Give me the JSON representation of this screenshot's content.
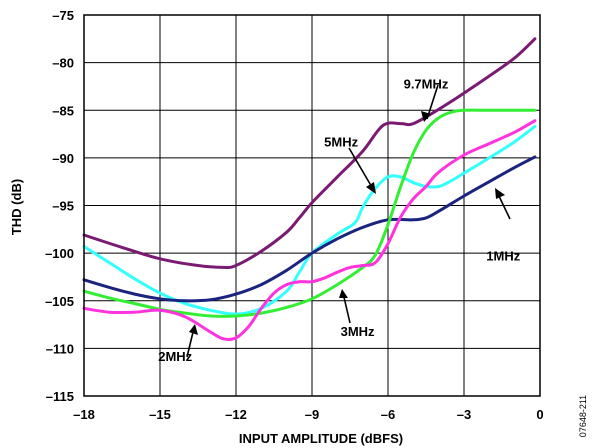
{
  "chart_data": {
    "type": "line",
    "xlabel": "INPUT AMPLITUDE (dBFS)",
    "ylabel": "THD (dB)",
    "xlim": [
      -18,
      0
    ],
    "ylim": [
      -115,
      -75
    ],
    "xticks": [
      "–18",
      "–15",
      "–12",
      "–9",
      "–6",
      "–3",
      "0"
    ],
    "yticks": [
      "–75",
      "–80",
      "–85",
      "–90",
      "–95",
      "–100",
      "–105",
      "–110",
      "–115"
    ],
    "grid": true,
    "side_note": "07648-211",
    "series": [
      {
        "name": "9.7MHz",
        "color": "#7b1a73",
        "x": [
          -18,
          -16.5,
          -15,
          -13.5,
          -12.5,
          -12,
          -11,
          -10,
          -9.5,
          -9,
          -8,
          -7,
          -6.2,
          -5.5,
          -5,
          -4,
          -3,
          -2,
          -1,
          -0.2
        ],
        "y": [
          -98.1,
          -99.4,
          -100.6,
          -101.3,
          -101.5,
          -101.3,
          -99.8,
          -97.8,
          -96.3,
          -94.7,
          -92.0,
          -89.3,
          -86.6,
          -86.4,
          -86.4,
          -84.9,
          -83.2,
          -81.4,
          -79.5,
          -77.5
        ]
      },
      {
        "name": "5MHz",
        "color": "#33ffff",
        "x": [
          -18,
          -17,
          -16,
          -15,
          -14,
          -13,
          -12,
          -11,
          -10,
          -9.5,
          -9,
          -8,
          -7.3,
          -7,
          -6.5,
          -6,
          -5.5,
          -5,
          -4.5,
          -4,
          -3.5,
          -3,
          -2,
          -1,
          -0.2
        ],
        "y": [
          -99.3,
          -101.0,
          -102.7,
          -104.2,
          -105.3,
          -106.0,
          -106.4,
          -105.8,
          -104.0,
          -102.0,
          -100.0,
          -98.0,
          -96.8,
          -95.2,
          -93.2,
          -92.0,
          -92.0,
          -92.6,
          -93.0,
          -93.0,
          -92.4,
          -91.6,
          -90.0,
          -88.3,
          -86.7
        ]
      },
      {
        "name": "1MHz",
        "color": "#1a237e",
        "x": [
          -18,
          -17,
          -16,
          -15,
          -14,
          -13,
          -12,
          -11,
          -10,
          -9,
          -8,
          -7,
          -6,
          -5,
          -4.5,
          -4,
          -3,
          -2,
          -1,
          -0.2
        ],
        "y": [
          -102.8,
          -103.6,
          -104.3,
          -104.8,
          -105.0,
          -104.9,
          -104.3,
          -103.3,
          -101.8,
          -100.0,
          -98.5,
          -97.3,
          -96.5,
          -96.5,
          -96.3,
          -95.6,
          -94.0,
          -92.5,
          -91.0,
          -89.9
        ]
      },
      {
        "name": "3MHz",
        "color": "#33ee33",
        "x": [
          -18,
          -17,
          -16,
          -15,
          -14,
          -13,
          -12,
          -11,
          -10,
          -9,
          -8,
          -7,
          -6.5,
          -6,
          -5.5,
          -5,
          -4.5,
          -4,
          -3.5,
          -3,
          -2,
          -1,
          -0.2
        ],
        "y": [
          -104.0,
          -104.7,
          -105.3,
          -105.9,
          -106.3,
          -106.6,
          -106.6,
          -106.3,
          -105.7,
          -104.8,
          -103.3,
          -101.5,
          -100.2,
          -97.0,
          -93.0,
          -89.5,
          -87.1,
          -85.8,
          -85.2,
          -85.0,
          -85.0,
          -85.0,
          -85.0
        ]
      },
      {
        "name": "2MHz",
        "color": "#ff33dd",
        "x": [
          -18,
          -17,
          -16,
          -15,
          -14,
          -13,
          -12.5,
          -12,
          -11.5,
          -11,
          -10.5,
          -10,
          -9.5,
          -9,
          -8.5,
          -8,
          -7.5,
          -7,
          -6.5,
          -6,
          -5.5,
          -5,
          -4.5,
          -4,
          -3,
          -2,
          -1,
          -0.2
        ],
        "y": [
          -105.8,
          -106.2,
          -106.2,
          -106.0,
          -106.7,
          -108.3,
          -109.0,
          -108.9,
          -107.7,
          -105.8,
          -104.2,
          -103.3,
          -103.0,
          -103.0,
          -102.6,
          -102.0,
          -101.5,
          -101.3,
          -101.0,
          -99.0,
          -96.2,
          -94.3,
          -93.0,
          -91.5,
          -89.7,
          -88.5,
          -87.3,
          -86.1
        ]
      }
    ],
    "annotations": [
      {
        "text": "9.7MHz",
        "x": -4.5,
        "y": -82.7
      },
      {
        "text": "5MHz",
        "x": -7.85,
        "y": -88.8
      },
      {
        "text": "1MHz",
        "x": -1.45,
        "y": -100.8
      },
      {
        "text": "3MHz",
        "x": -7.2,
        "y": -108.7
      },
      {
        "text": "2MHz",
        "x": -14.4,
        "y": -111.3
      }
    ]
  }
}
